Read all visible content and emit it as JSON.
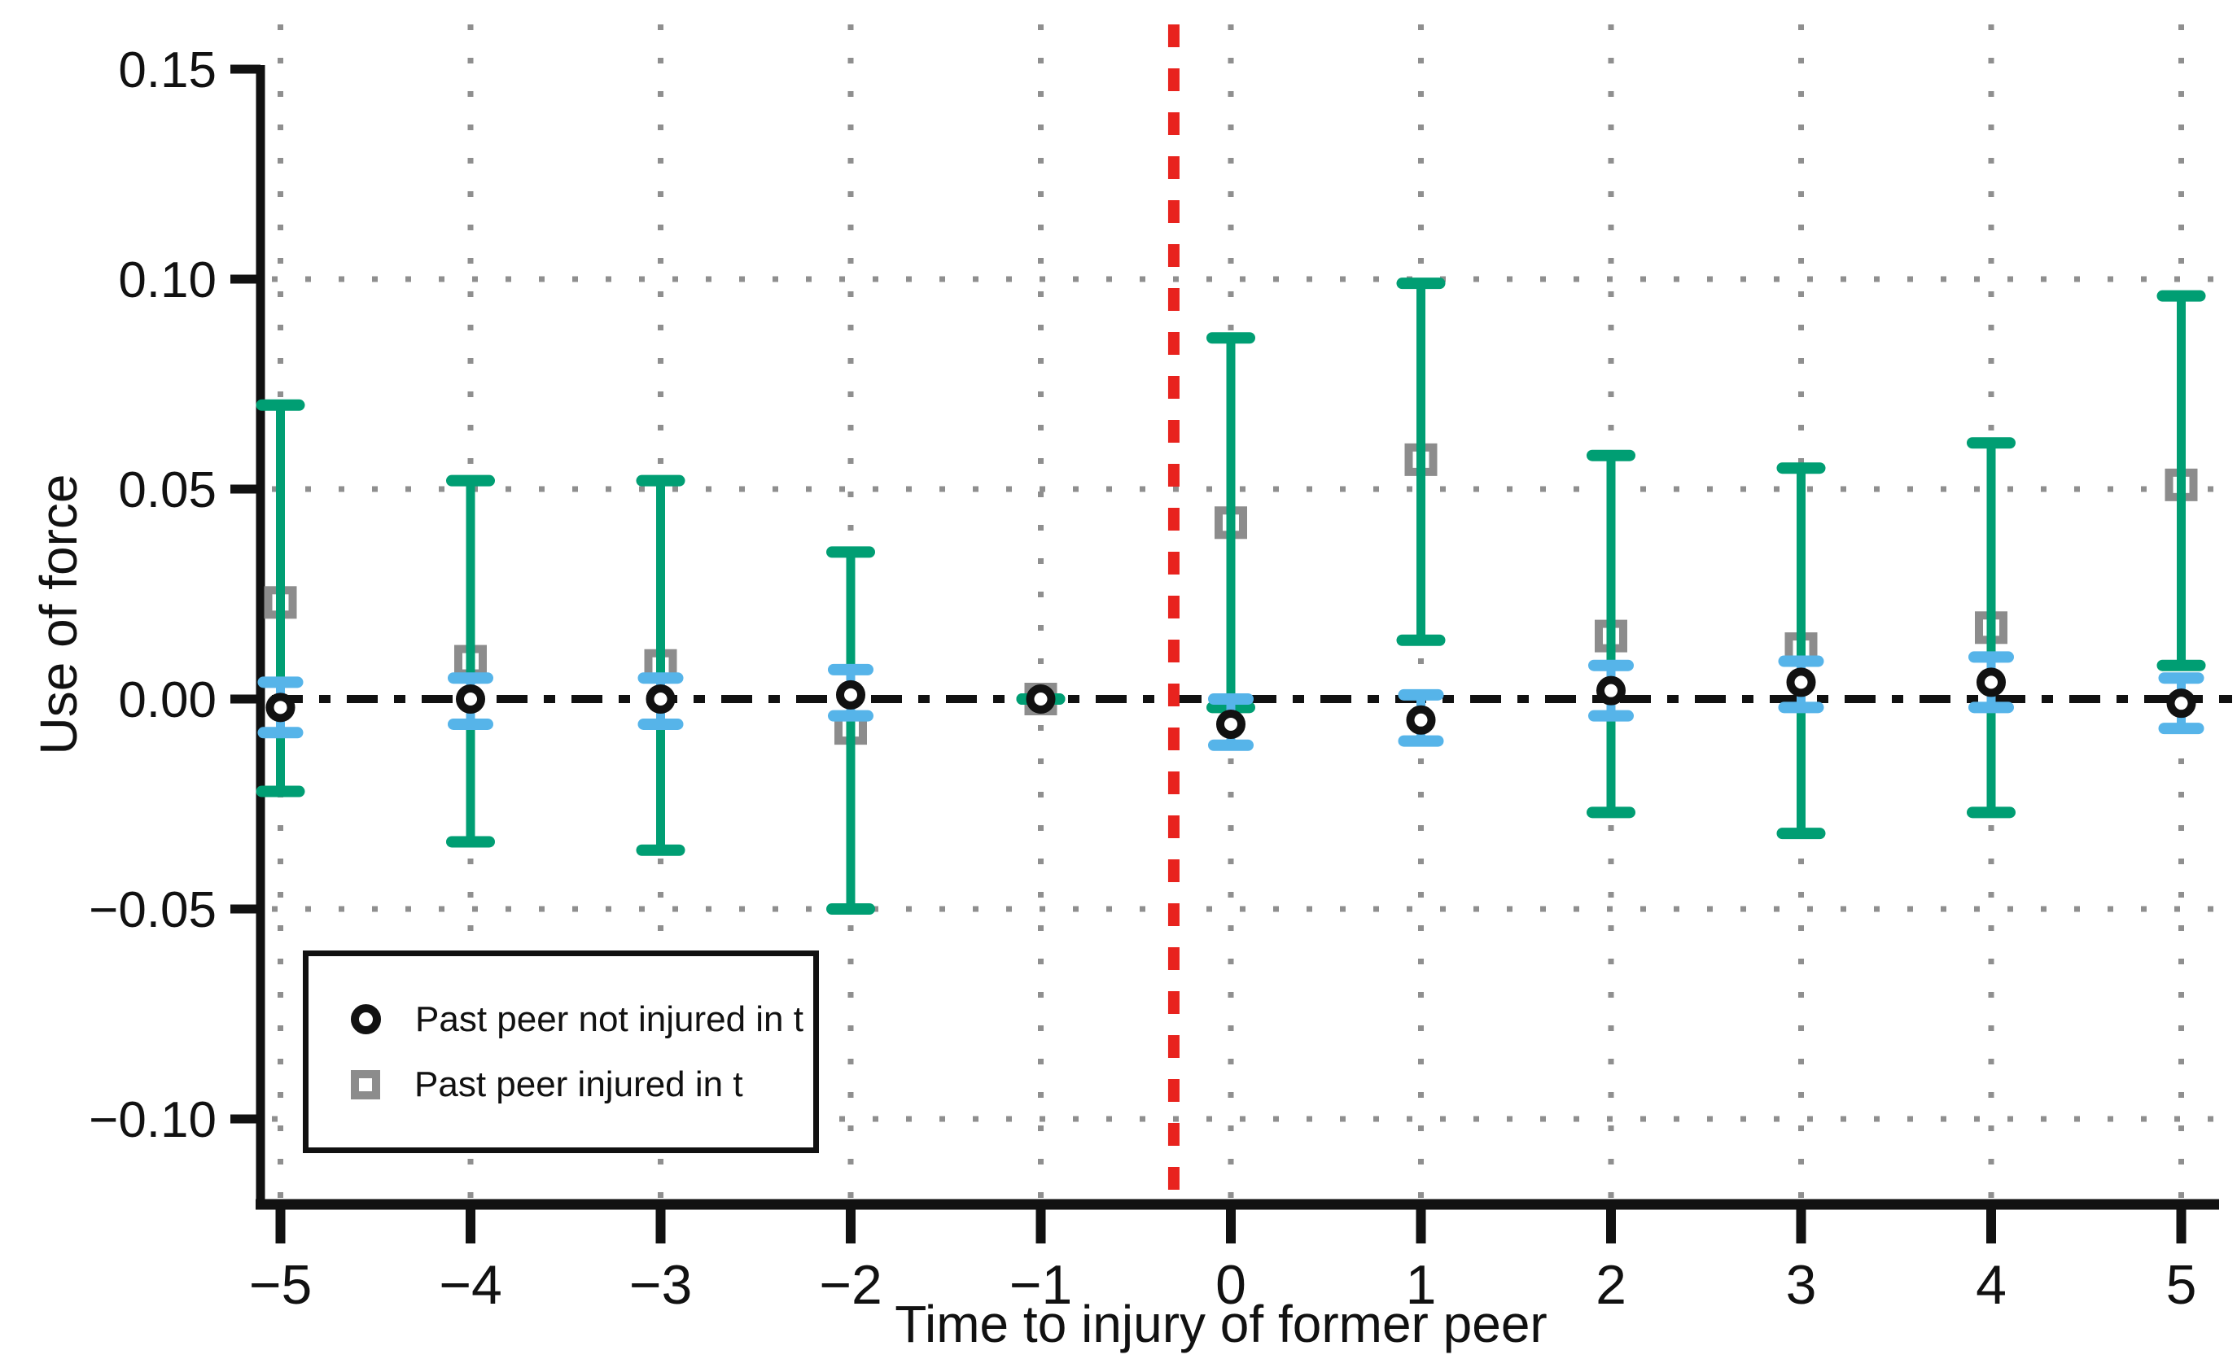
{
  "figure": {
    "background": "#ffffff"
  },
  "colors": {
    "circle_series": "#111111",
    "circle_ci": "#56B4E9",
    "square_series": "#8C8C8C",
    "square_ci": "#009E73",
    "event_line": "#E8231E",
    "zero_line": "#111111",
    "grid": "#8F8F8F",
    "axis": "#111111"
  },
  "legend": {
    "items": [
      {
        "marker": "circle",
        "label": "Past peer not injured in t"
      },
      {
        "marker": "square",
        "label": "Past peer injured in t"
      }
    ]
  },
  "chart_data": {
    "type": "scatter",
    "title": "",
    "xlabel": "Time to injury of former peer",
    "ylabel": "Use of force",
    "x": [
      -5,
      -4,
      -3,
      -2,
      -1,
      0,
      1,
      2,
      3,
      4,
      5
    ],
    "x_tick_labels": [
      "−5",
      "−4",
      "−3",
      "−2",
      "−1",
      "0",
      "1",
      "2",
      "3",
      "4",
      "5"
    ],
    "y_ticks": [
      0.15,
      0.1,
      0.05,
      0.0,
      -0.05,
      -0.1
    ],
    "y_tick_labels": [
      "0.15",
      "0.10",
      "0.05",
      "0.00",
      "−0.05",
      "−0.10"
    ],
    "grid_y_values": [
      0.1,
      0.05,
      -0.05,
      -0.1
    ],
    "xlim": [
      -5.1,
      5.2
    ],
    "ylim": [
      -0.12,
      0.16
    ],
    "grid": "dotted",
    "legend_position": "lower left",
    "reference_lines": {
      "zero_line_y": 0.0,
      "event_line_x": -0.3
    },
    "series": [
      {
        "name": "Past peer injured in t",
        "marker": "square",
        "values": [
          0.023,
          0.009,
          0.008,
          -0.007,
          0.0,
          0.042,
          0.057,
          0.015,
          0.012,
          0.017,
          0.051
        ],
        "ci_low": [
          -0.022,
          -0.034,
          -0.036,
          -0.05,
          0.0,
          -0.002,
          0.014,
          -0.027,
          -0.032,
          -0.027,
          0.008
        ],
        "ci_high": [
          0.07,
          0.052,
          0.052,
          0.035,
          0.0,
          0.086,
          0.099,
          0.058,
          0.055,
          0.061,
          0.096
        ]
      },
      {
        "name": "Past peer not injured in t",
        "marker": "circle",
        "values": [
          -0.002,
          0.0,
          0.0,
          0.001,
          0.0,
          -0.006,
          -0.005,
          0.002,
          0.004,
          0.004,
          -0.001
        ],
        "ci_low": [
          -0.008,
          -0.006,
          -0.006,
          -0.004,
          0.0,
          -0.011,
          -0.01,
          -0.004,
          -0.002,
          -0.002,
          -0.007
        ],
        "ci_high": [
          0.004,
          0.005,
          0.005,
          0.007,
          0.0,
          0.0,
          0.001,
          0.008,
          0.009,
          0.01,
          0.005
        ]
      }
    ]
  }
}
